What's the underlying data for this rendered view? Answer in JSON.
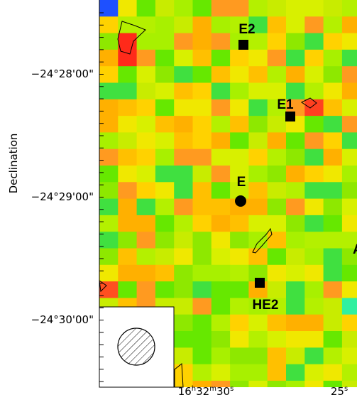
{
  "axes": {
    "y_label": "Declination",
    "y_ticks": [
      "−24°28'00\"",
      "−24°29'00\"",
      "−24°30'00\""
    ],
    "x_ticks": [
      [
        "16",
        "h",
        "32",
        "m",
        "30",
        "s"
      ],
      [
        "25",
        "s"
      ]
    ]
  },
  "sources": [
    {
      "label": "E2"
    },
    {
      "label": "E1"
    },
    {
      "label": "E"
    },
    {
      "label": "HE2"
    },
    {
      "label": "A"
    }
  ]
}
